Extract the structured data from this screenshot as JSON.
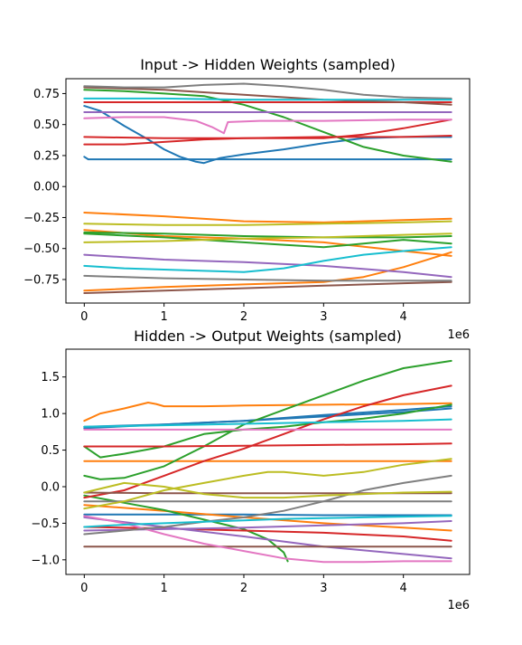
{
  "chart_data": [
    {
      "type": "line",
      "title": "Input -> Hidden Weights (sampled)",
      "xlabel": "",
      "ylabel": "",
      "x_offset_label": "1e6",
      "xlim": [
        -0.23,
        4.83
      ],
      "ylim": [
        -0.94,
        0.87
      ],
      "x_ticks": [
        0,
        1,
        2,
        3,
        4
      ],
      "x_tick_labels": [
        "0",
        "1",
        "2",
        "3",
        "4"
      ],
      "y_ticks": [
        -0.75,
        -0.5,
        -0.25,
        0.0,
        0.25,
        0.5,
        0.75
      ],
      "y_tick_labels": [
        "−0.75",
        "−0.50",
        "−0.25",
        "0.00",
        "0.25",
        "0.50",
        "0.75"
      ],
      "grid": false,
      "legend": "none",
      "series": [
        {
          "color": "#1f77b4",
          "x": [
            0,
            0.2,
            0.5,
            0.8,
            1.0,
            1.2,
            1.4,
            1.5,
            1.7,
            2.0,
            2.5,
            3.0,
            3.5,
            4.0,
            4.6
          ],
          "values": [
            0.65,
            0.61,
            0.49,
            0.38,
            0.3,
            0.24,
            0.2,
            0.19,
            0.23,
            0.26,
            0.3,
            0.35,
            0.39,
            0.4,
            0.4
          ]
        },
        {
          "color": "#1f77b4",
          "x": [
            0,
            0.05,
            4.6
          ],
          "values": [
            0.24,
            0.22,
            0.22
          ]
        },
        {
          "color": "#ff7f0e",
          "x": [
            0,
            1,
            2,
            3,
            4,
            4.6
          ],
          "values": [
            -0.21,
            -0.24,
            -0.28,
            -0.29,
            -0.27,
            -0.26
          ]
        },
        {
          "color": "#ff7f0e",
          "x": [
            0,
            1,
            2,
            3,
            3.5,
            4,
            4.6
          ],
          "values": [
            -0.84,
            -0.81,
            -0.79,
            -0.77,
            -0.73,
            -0.65,
            -0.53
          ]
        },
        {
          "color": "#ff7f0e",
          "x": [
            0,
            1,
            2,
            3,
            4,
            4.6
          ],
          "values": [
            -0.35,
            -0.4,
            -0.42,
            -0.45,
            -0.52,
            -0.56
          ]
        },
        {
          "color": "#2ca02c",
          "x": [
            0,
            0.5,
            1.0,
            1.5,
            2.0,
            2.5,
            3.0,
            3.5,
            4.0,
            4.6
          ],
          "values": [
            0.78,
            0.77,
            0.75,
            0.73,
            0.66,
            0.56,
            0.44,
            0.32,
            0.25,
            0.2
          ]
        },
        {
          "color": "#2ca02c",
          "x": [
            0,
            1,
            2,
            2.5,
            3,
            3.5,
            4,
            4.6
          ],
          "values": [
            -0.38,
            -0.41,
            -0.45,
            -0.47,
            -0.49,
            -0.46,
            -0.43,
            -0.46
          ]
        },
        {
          "color": "#2ca02c",
          "x": [
            0,
            1,
            2,
            3,
            4,
            4.6
          ],
          "values": [
            -0.37,
            -0.38,
            -0.4,
            -0.41,
            -0.41,
            -0.4
          ]
        },
        {
          "color": "#d62728",
          "x": [
            0,
            0.5,
            1.0,
            1.5,
            2.0,
            2.5,
            3.0,
            3.5,
            4.0,
            4.6
          ],
          "values": [
            0.34,
            0.34,
            0.36,
            0.38,
            0.39,
            0.39,
            0.39,
            0.42,
            0.47,
            0.54
          ]
        },
        {
          "color": "#d62728",
          "x": [
            0,
            1,
            2,
            3,
            4,
            4.6
          ],
          "values": [
            0.4,
            0.39,
            0.39,
            0.4,
            0.4,
            0.41
          ]
        },
        {
          "color": "#d62728",
          "x": [
            0,
            1,
            2,
            3,
            4,
            4.6
          ],
          "values": [
            0.68,
            0.68,
            0.68,
            0.68,
            0.68,
            0.68
          ]
        },
        {
          "color": "#9467bd",
          "x": [
            0,
            1,
            2,
            3,
            4,
            4.6
          ],
          "values": [
            0.6,
            0.6,
            0.6,
            0.6,
            0.6,
            0.6
          ]
        },
        {
          "color": "#9467bd",
          "x": [
            0,
            1,
            2,
            3,
            4,
            4.6
          ],
          "values": [
            -0.55,
            -0.59,
            -0.61,
            -0.64,
            -0.69,
            -0.73
          ]
        },
        {
          "color": "#8c564b",
          "x": [
            0,
            1,
            2,
            3,
            4,
            4.6
          ],
          "values": [
            0.8,
            0.78,
            0.74,
            0.7,
            0.68,
            0.66
          ]
        },
        {
          "color": "#8c564b",
          "x": [
            0,
            1,
            2,
            3,
            4,
            4.6
          ],
          "values": [
            -0.86,
            -0.84,
            -0.82,
            -0.8,
            -0.78,
            -0.77
          ]
        },
        {
          "color": "#e377c2",
          "x": [
            0,
            0.5,
            1.0,
            1.4,
            1.6,
            1.75,
            1.8,
            2.2,
            3.0,
            4.0,
            4.6
          ],
          "values": [
            0.55,
            0.56,
            0.56,
            0.53,
            0.48,
            0.43,
            0.52,
            0.53,
            0.53,
            0.54,
            0.54
          ]
        },
        {
          "color": "#7f7f7f",
          "x": [
            0,
            0.5,
            1.0,
            1.5,
            2.0,
            2.5,
            3.0,
            3.5,
            4.0,
            4.6
          ],
          "values": [
            0.81,
            0.8,
            0.8,
            0.82,
            0.83,
            0.81,
            0.78,
            0.74,
            0.72,
            0.71
          ]
        },
        {
          "color": "#7f7f7f",
          "x": [
            0,
            1,
            2,
            3,
            4,
            4.6
          ],
          "values": [
            -0.72,
            -0.74,
            -0.75,
            -0.76,
            -0.76,
            -0.76
          ]
        },
        {
          "color": "#bcbd22",
          "x": [
            0,
            1,
            2,
            3,
            4,
            4.6
          ],
          "values": [
            -0.3,
            -0.31,
            -0.31,
            -0.3,
            -0.29,
            -0.28
          ]
        },
        {
          "color": "#bcbd22",
          "x": [
            0,
            1,
            2,
            3,
            4,
            4.6
          ],
          "values": [
            -0.45,
            -0.44,
            -0.42,
            -0.41,
            -0.39,
            -0.38
          ]
        },
        {
          "color": "#17becf",
          "x": [
            0,
            0.5,
            1.0,
            1.5,
            2.0,
            2.5,
            3.0,
            3.5,
            4.0,
            4.6
          ],
          "values": [
            -0.64,
            -0.66,
            -0.67,
            -0.68,
            -0.69,
            -0.66,
            -0.6,
            -0.55,
            -0.52,
            -0.49
          ]
        },
        {
          "color": "#17becf",
          "x": [
            0,
            1,
            2,
            3,
            4,
            4.6
          ],
          "values": [
            0.71,
            0.71,
            0.7,
            0.7,
            0.7,
            0.7
          ]
        }
      ]
    },
    {
      "type": "line",
      "title": "Hidden -> Output Weights (sampled)",
      "xlabel": "",
      "ylabel": "",
      "x_offset_label": "1e6",
      "xlim": [
        -0.23,
        4.83
      ],
      "ylim": [
        -1.2,
        1.88
      ],
      "x_ticks": [
        0,
        1,
        2,
        3,
        4
      ],
      "x_tick_labels": [
        "0",
        "1",
        "2",
        "3",
        "4"
      ],
      "y_ticks": [
        -1.0,
        -0.5,
        0.0,
        0.5,
        1.0,
        1.5
      ],
      "y_tick_labels": [
        "−1.0",
        "−0.5",
        "0.0",
        "0.5",
        "1.0",
        "1.5"
      ],
      "grid": false,
      "legend": "none",
      "series": [
        {
          "color": "#1f77b4",
          "x": [
            0,
            1,
            2,
            3,
            4,
            4.6
          ],
          "values": [
            0.8,
            0.85,
            0.9,
            0.98,
            1.05,
            1.1
          ]
        },
        {
          "color": "#1f77b4",
          "x": [
            0,
            1,
            2,
            3,
            4,
            4.6
          ],
          "values": [
            0.82,
            0.85,
            0.9,
            0.96,
            1.02,
            1.07
          ]
        },
        {
          "color": "#1f77b4",
          "x": [
            0,
            1,
            2,
            3,
            4,
            4.6
          ],
          "values": [
            -0.38,
            -0.38,
            -0.38,
            -0.39,
            -0.39,
            -0.39
          ]
        },
        {
          "color": "#ff7f0e",
          "x": [
            0,
            0.2,
            0.5,
            0.8,
            0.9,
            1.0,
            1.5,
            2.0,
            3.0,
            4.0,
            4.6
          ],
          "values": [
            0.9,
            1.0,
            1.07,
            1.15,
            1.13,
            1.1,
            1.1,
            1.11,
            1.12,
            1.13,
            1.14
          ]
        },
        {
          "color": "#ff7f0e",
          "x": [
            0,
            1,
            2,
            3,
            4,
            4.6
          ],
          "values": [
            0.35,
            0.35,
            0.35,
            0.35,
            0.35,
            0.35
          ]
        },
        {
          "color": "#ff7f0e",
          "x": [
            0,
            1,
            2,
            3,
            4,
            4.6
          ],
          "values": [
            -0.25,
            -0.33,
            -0.42,
            -0.5,
            -0.56,
            -0.6
          ]
        },
        {
          "color": "#2ca02c",
          "x": [
            0,
            0.2,
            0.5,
            1.0,
            1.5,
            2.0,
            2.5,
            3.0,
            3.5,
            4.0,
            4.6
          ],
          "values": [
            0.15,
            0.1,
            0.12,
            0.28,
            0.55,
            0.85,
            1.05,
            1.25,
            1.45,
            1.62,
            1.72
          ]
        },
        {
          "color": "#2ca02c",
          "x": [
            0,
            0.2,
            0.5,
            1.0,
            1.5,
            2.0,
            2.5,
            3.0,
            3.5,
            4.0,
            4.6
          ],
          "values": [
            0.55,
            0.4,
            0.45,
            0.55,
            0.72,
            0.78,
            0.82,
            0.88,
            0.93,
            1.0,
            1.12
          ]
        },
        {
          "color": "#2ca02c",
          "x": [
            0,
            0.5,
            1.0,
            1.5,
            2.0,
            2.3,
            2.5,
            2.55
          ],
          "values": [
            -0.12,
            -0.22,
            -0.32,
            -0.45,
            -0.58,
            -0.72,
            -0.9,
            -1.02
          ]
        },
        {
          "color": "#d62728",
          "x": [
            0,
            0.5,
            1.0,
            1.5,
            2.0,
            2.5,
            3.0,
            3.5,
            4.0,
            4.6
          ],
          "values": [
            -0.15,
            -0.05,
            0.15,
            0.35,
            0.52,
            0.72,
            0.92,
            1.1,
            1.25,
            1.38
          ]
        },
        {
          "color": "#d62728",
          "x": [
            0,
            1,
            2,
            3,
            4,
            4.6
          ],
          "values": [
            0.55,
            0.55,
            0.56,
            0.57,
            0.58,
            0.59
          ]
        },
        {
          "color": "#d62728",
          "x": [
            0,
            1,
            2,
            3,
            4,
            4.6
          ],
          "values": [
            -0.55,
            -0.57,
            -0.6,
            -0.63,
            -0.68,
            -0.74
          ]
        },
        {
          "color": "#9467bd",
          "x": [
            0,
            1,
            2,
            3,
            4,
            4.6
          ],
          "values": [
            -0.42,
            -0.55,
            -0.68,
            -0.82,
            -0.92,
            -0.98
          ]
        },
        {
          "color": "#9467bd",
          "x": [
            0,
            1,
            2,
            3,
            4,
            4.6
          ],
          "values": [
            -0.6,
            -0.58,
            -0.56,
            -0.53,
            -0.5,
            -0.47
          ]
        },
        {
          "color": "#8c564b",
          "x": [
            0,
            1,
            2,
            3,
            4,
            4.6
          ],
          "values": [
            -0.82,
            -0.82,
            -0.82,
            -0.82,
            -0.82,
            -0.82
          ]
        },
        {
          "color": "#8c564b",
          "x": [
            0,
            1,
            2,
            3,
            4,
            4.6
          ],
          "values": [
            -0.08,
            -0.09,
            -0.09,
            -0.09,
            -0.09,
            -0.09
          ]
        },
        {
          "color": "#e377c2",
          "x": [
            0,
            0.5,
            1.0,
            1.5,
            2.0,
            2.5,
            3.0,
            3.5,
            4.0,
            4.6
          ],
          "values": [
            -0.4,
            -0.5,
            -0.65,
            -0.78,
            -0.88,
            -0.98,
            -1.03,
            -1.03,
            -1.02,
            -1.02
          ]
        },
        {
          "color": "#e377c2",
          "x": [
            0,
            1,
            2,
            3,
            4,
            4.6
          ],
          "values": [
            0.78,
            0.78,
            0.78,
            0.78,
            0.78,
            0.78
          ]
        },
        {
          "color": "#7f7f7f",
          "x": [
            0,
            0.5,
            1.0,
            1.5,
            2.0,
            2.5,
            3.0,
            3.5,
            4.0,
            4.6
          ],
          "values": [
            -0.65,
            -0.6,
            -0.55,
            -0.48,
            -0.42,
            -0.33,
            -0.2,
            -0.05,
            0.05,
            0.15
          ]
        },
        {
          "color": "#7f7f7f",
          "x": [
            0,
            1,
            2,
            3,
            4,
            4.6
          ],
          "values": [
            -0.2,
            -0.2,
            -0.2,
            -0.2,
            -0.2,
            -0.2
          ]
        },
        {
          "color": "#bcbd22",
          "x": [
            0,
            0.5,
            1.0,
            1.5,
            2.0,
            2.3,
            2.5,
            3.0,
            3.5,
            4.0,
            4.6
          ],
          "values": [
            -0.3,
            -0.2,
            -0.05,
            0.05,
            0.15,
            0.2,
            0.2,
            0.15,
            0.2,
            0.3,
            0.38
          ]
        },
        {
          "color": "#bcbd22",
          "x": [
            0,
            0.5,
            1.0,
            1.5,
            2.0,
            2.5,
            3.0,
            3.5,
            4.0,
            4.6
          ],
          "values": [
            -0.08,
            0.05,
            0.0,
            -0.1,
            -0.15,
            -0.15,
            -0.12,
            -0.1,
            -0.08,
            -0.07
          ]
        },
        {
          "color": "#17becf",
          "x": [
            0,
            1,
            2,
            3,
            4,
            4.6
          ],
          "values": [
            0.82,
            0.84,
            0.86,
            0.88,
            0.9,
            0.92
          ]
        },
        {
          "color": "#17becf",
          "x": [
            0,
            0.5,
            1.0,
            1.5,
            2.0,
            2.5,
            3.0,
            3.5,
            4.0,
            4.6
          ],
          "values": [
            -0.55,
            -0.52,
            -0.5,
            -0.48,
            -0.46,
            -0.44,
            -0.43,
            -0.42,
            -0.41,
            -0.4
          ]
        }
      ]
    }
  ]
}
